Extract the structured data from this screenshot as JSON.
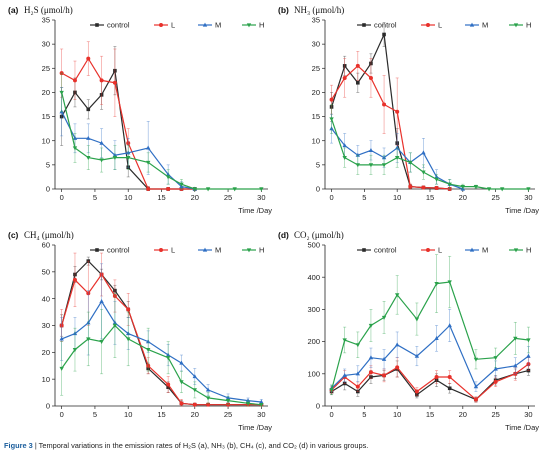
{
  "caption": {
    "label": "Figure 3",
    "text": "| Temporal variations in the emission rates of H₂S (a), NH₃ (b), CH₄ (c), and CO₂ (d) in various groups."
  },
  "legend": [
    "control",
    "L",
    "M",
    "H"
  ],
  "colors": {
    "control": "#2b2b2b",
    "L": "#e8312b",
    "M": "#2f6fc4",
    "H": "#2aa24b"
  },
  "chart_data": [
    {
      "panel_label": "(a)",
      "title": "H₂S (μmol/h)",
      "type": "line",
      "xlabel": "Time /Day",
      "xlim": [
        -1,
        31
      ],
      "ylim": [
        0,
        35
      ],
      "xticks": [
        0,
        5,
        10,
        15,
        20,
        25,
        30
      ],
      "yticks": [
        0,
        5,
        10,
        15,
        20,
        25,
        30,
        35
      ],
      "legend_position": "top-right",
      "series": [
        {
          "name": "control",
          "x": [
            0,
            2,
            4,
            6,
            8,
            10,
            13,
            16,
            18,
            20
          ],
          "y": [
            15,
            20,
            16.5,
            19.5,
            24.5,
            4.5,
            0,
            0,
            0,
            0
          ],
          "err": [
            6,
            3,
            2,
            3,
            5,
            2,
            0.5,
            0.3,
            0.3,
            0.3
          ]
        },
        {
          "name": "L",
          "x": [
            0,
            2,
            4,
            6,
            8,
            10,
            13,
            16,
            18,
            20
          ],
          "y": [
            24,
            22.5,
            27,
            22.5,
            22,
            9.5,
            0,
            0,
            0,
            0
          ],
          "err": [
            5,
            4,
            3.5,
            5,
            7,
            3,
            0.5,
            0.3,
            0.3,
            0.3
          ]
        },
        {
          "name": "M",
          "x": [
            0,
            2,
            4,
            6,
            8,
            10,
            13,
            16,
            18,
            20
          ],
          "y": [
            16,
            10.5,
            10.5,
            9.5,
            7,
            7.5,
            8.5,
            3,
            0.5,
            0
          ],
          "err": [
            5,
            3,
            3,
            3,
            3,
            3,
            5.5,
            2,
            1,
            0.3
          ]
        },
        {
          "name": "H",
          "x": [
            0,
            2,
            4,
            6,
            8,
            10,
            13,
            16,
            18,
            20,
            22,
            26,
            30
          ],
          "y": [
            20,
            8.5,
            6.5,
            6,
            6.5,
            6.5,
            5.5,
            2.5,
            1,
            0,
            0,
            0,
            0
          ],
          "err": [
            4,
            3,
            2.5,
            2.5,
            2.5,
            2.5,
            2,
            1.5,
            1,
            0.3,
            0.3,
            0.3,
            0.3
          ]
        }
      ]
    },
    {
      "panel_label": "(b)",
      "title": "NH₃ (μmol/h)",
      "type": "line",
      "xlabel": "Time /Day",
      "xlim": [
        -1,
        31
      ],
      "ylim": [
        0,
        35
      ],
      "xticks": [
        0,
        5,
        10,
        15,
        20,
        25,
        30
      ],
      "yticks": [
        0,
        5,
        10,
        15,
        20,
        25,
        30,
        35
      ],
      "legend_position": "top-right",
      "series": [
        {
          "name": "control",
          "x": [
            0,
            2,
            4,
            6,
            8,
            10,
            12,
            14,
            16,
            18
          ],
          "y": [
            17,
            25.5,
            22,
            26,
            32,
            9.5,
            0.5,
            0.3,
            0.2,
            0
          ],
          "err": [
            3,
            2,
            2,
            2,
            2.5,
            3,
            0.5,
            0.3,
            0.3,
            0.3
          ]
        },
        {
          "name": "L",
          "x": [
            0,
            2,
            4,
            6,
            8,
            10,
            12,
            14,
            16,
            18
          ],
          "y": [
            18.5,
            23,
            25.5,
            23,
            17.5,
            16,
            0.5,
            0.3,
            0.2,
            0
          ],
          "err": [
            3,
            4,
            3,
            4,
            6,
            7,
            0.5,
            0.3,
            0.3,
            0.3
          ]
        },
        {
          "name": "M",
          "x": [
            0,
            2,
            4,
            6,
            8,
            10,
            12,
            14,
            16,
            18,
            20
          ],
          "y": [
            12.5,
            9,
            7,
            8,
            6.5,
            8.5,
            5.5,
            7.5,
            2.5,
            1,
            0
          ],
          "err": [
            3,
            2.5,
            2,
            2,
            2,
            3,
            2,
            3,
            1.5,
            1,
            0.3
          ]
        },
        {
          "name": "H",
          "x": [
            0,
            2,
            4,
            6,
            8,
            10,
            12,
            14,
            16,
            18,
            20,
            22,
            24,
            26,
            30
          ],
          "y": [
            14.5,
            6.5,
            5,
            5,
            5,
            6.5,
            5.5,
            3.5,
            2,
            1,
            0.5,
            0.5,
            0,
            0,
            0
          ],
          "err": [
            3,
            2,
            2,
            2,
            2,
            2,
            2,
            1.5,
            1,
            1,
            0.5,
            0.3,
            0.3,
            0.3,
            0.3
          ]
        }
      ]
    },
    {
      "panel_label": "(c)",
      "title": "CH₄ (μmol/h)",
      "type": "line",
      "xlabel": "Time /Day",
      "xlim": [
        -1,
        31
      ],
      "ylim": [
        0,
        60
      ],
      "xticks": [
        0,
        5,
        10,
        15,
        20,
        25,
        30
      ],
      "yticks": [
        0,
        10,
        20,
        30,
        40,
        50,
        60
      ],
      "legend_position": "top-right",
      "series": [
        {
          "name": "control",
          "x": [
            0,
            2,
            4,
            6,
            8,
            10,
            13,
            16,
            18,
            20,
            22,
            25,
            28,
            30
          ],
          "y": [
            30,
            49,
            54,
            49,
            43,
            36,
            14,
            7,
            1,
            0.5,
            0.5,
            0.5,
            0.5,
            0.5
          ],
          "err": [
            4,
            3,
            1.5,
            2,
            2,
            3,
            2,
            2,
            1,
            0.5,
            0.5,
            0.5,
            0.5,
            0.5
          ]
        },
        {
          "name": "L",
          "x": [
            0,
            2,
            4,
            6,
            8,
            10,
            13,
            16,
            18,
            20,
            22,
            25,
            28,
            30
          ],
          "y": [
            30,
            47,
            42,
            49,
            41,
            36,
            15,
            8,
            1,
            0.5,
            0.5,
            0.5,
            0.5,
            0.5
          ],
          "err": [
            6,
            10,
            12,
            8,
            6,
            6,
            3,
            3,
            1.5,
            0.5,
            0.5,
            0.5,
            0.5,
            0.5
          ]
        },
        {
          "name": "M",
          "x": [
            0,
            2,
            4,
            6,
            8,
            10,
            13,
            16,
            18,
            20,
            22,
            25,
            28,
            30
          ],
          "y": [
            25,
            27,
            31,
            39,
            31,
            27,
            24,
            19,
            16,
            11,
            6,
            3,
            2,
            1.5
          ],
          "err": [
            8,
            6,
            12,
            14,
            8,
            6,
            4,
            4,
            3,
            3,
            2,
            1.5,
            1,
            1
          ]
        },
        {
          "name": "H",
          "x": [
            0,
            2,
            4,
            6,
            8,
            10,
            13,
            16,
            18,
            20,
            22,
            25,
            28,
            30
          ],
          "y": [
            14,
            21,
            25,
            24,
            30,
            25,
            21,
            18,
            9,
            6,
            3,
            2,
            1,
            0.5
          ],
          "err": [
            10,
            8,
            10,
            12,
            12,
            10,
            8,
            6,
            4,
            3,
            2,
            1.5,
            1,
            0.5
          ]
        }
      ]
    },
    {
      "panel_label": "(d)",
      "title": "CO₂ (μmol/h)",
      "type": "line",
      "xlabel": "Time /Day",
      "xlim": [
        -1,
        31
      ],
      "ylim": [
        0,
        500
      ],
      "xticks": [
        0,
        5,
        10,
        15,
        20,
        25,
        30
      ],
      "yticks": [
        0,
        100,
        200,
        300,
        400,
        500
      ],
      "legend_position": "top-right",
      "series": [
        {
          "name": "control",
          "x": [
            0,
            2,
            4,
            6,
            8,
            10,
            13,
            16,
            18,
            22,
            25,
            28,
            30
          ],
          "y": [
            45,
            70,
            45,
            90,
            95,
            115,
            35,
            80,
            55,
            20,
            80,
            100,
            110
          ],
          "err": [
            10,
            20,
            15,
            20,
            15,
            25,
            10,
            20,
            15,
            8,
            15,
            15,
            15
          ]
        },
        {
          "name": "L",
          "x": [
            0,
            2,
            4,
            6,
            8,
            10,
            13,
            16,
            18,
            22,
            25,
            28,
            30
          ],
          "y": [
            50,
            90,
            60,
            105,
            95,
            120,
            45,
            90,
            90,
            20,
            75,
            100,
            130
          ],
          "err": [
            10,
            20,
            15,
            20,
            20,
            30,
            12,
            20,
            20,
            8,
            15,
            20,
            20
          ]
        },
        {
          "name": "M",
          "x": [
            0,
            2,
            4,
            6,
            8,
            10,
            13,
            16,
            18,
            22,
            25,
            28,
            30
          ],
          "y": [
            55,
            95,
            100,
            150,
            145,
            190,
            155,
            210,
            250,
            60,
            115,
            125,
            155
          ],
          "err": [
            10,
            20,
            25,
            30,
            30,
            40,
            30,
            40,
            50,
            15,
            25,
            25,
            30
          ]
        },
        {
          "name": "H",
          "x": [
            0,
            2,
            4,
            6,
            8,
            10,
            13,
            16,
            18,
            22,
            25,
            28,
            30
          ],
          "y": [
            50,
            205,
            190,
            250,
            275,
            345,
            270,
            380,
            385,
            145,
            150,
            210,
            205
          ],
          "err": [
            15,
            40,
            40,
            50,
            50,
            60,
            50,
            90,
            80,
            30,
            30,
            50,
            40
          ]
        }
      ]
    }
  ]
}
